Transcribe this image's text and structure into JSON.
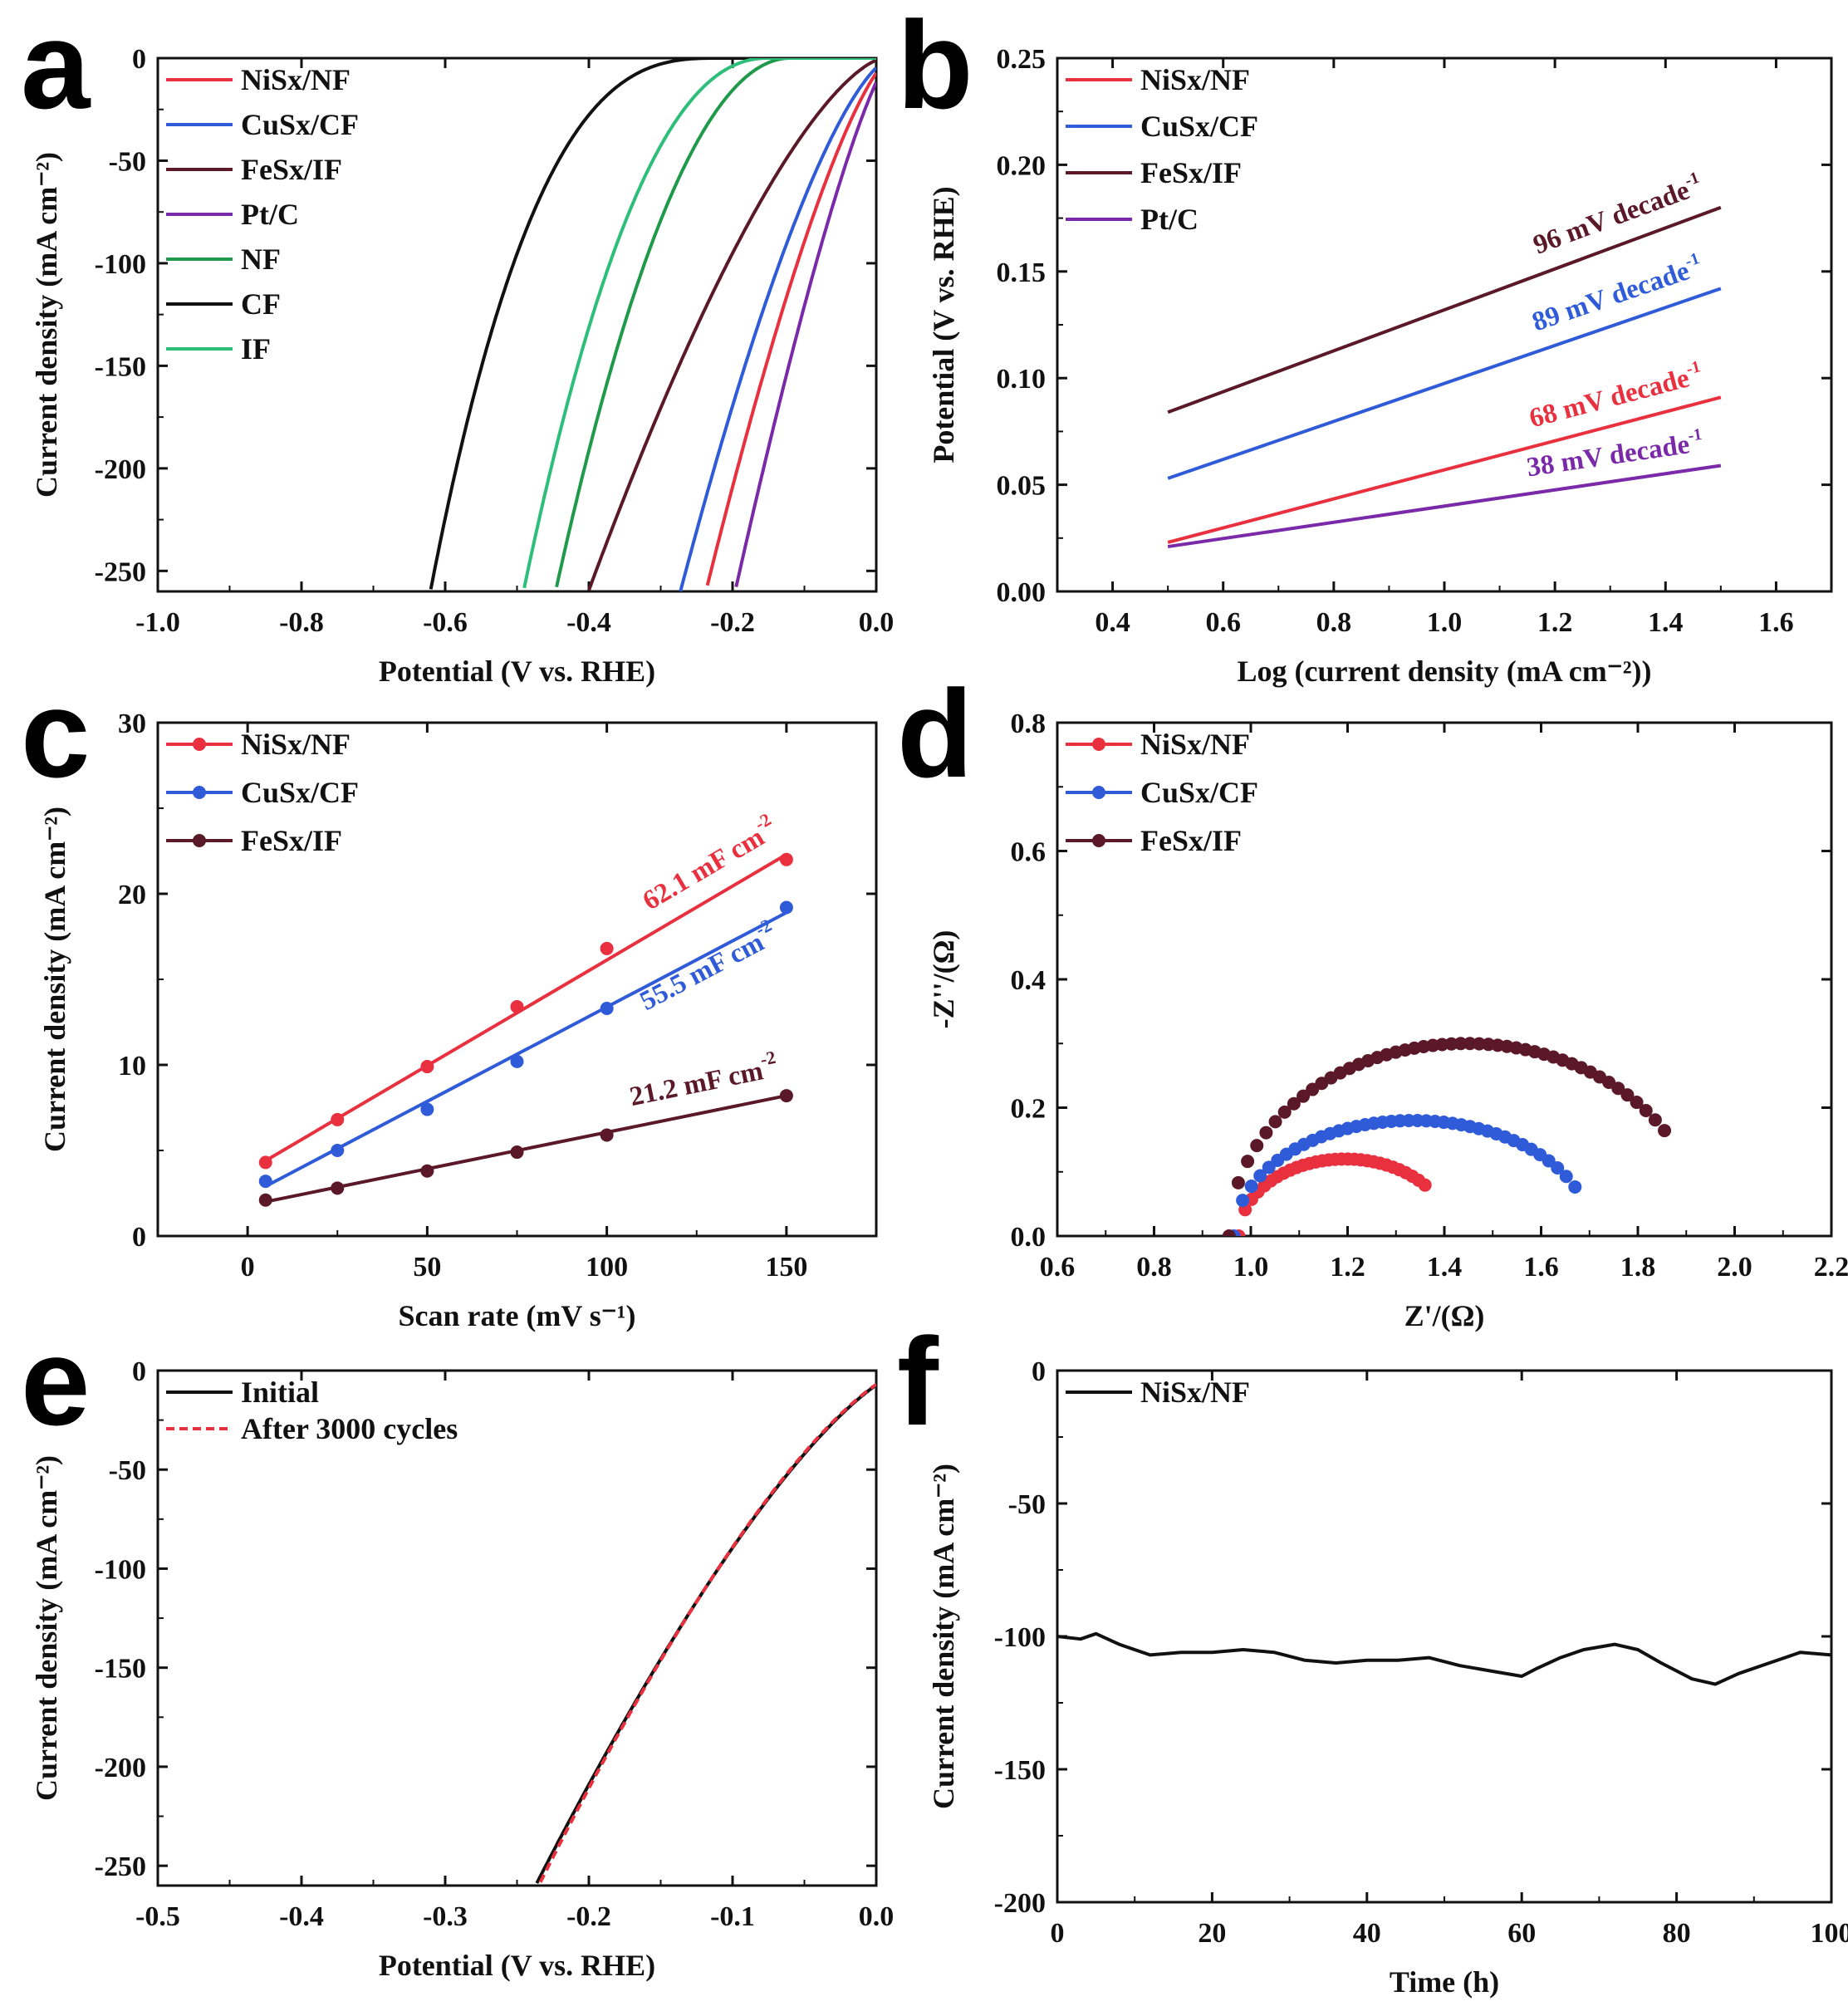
{
  "colors": {
    "red": "#e8303f",
    "blue": "#2f5bd9",
    "brown": "#5a1828",
    "purple": "#7a2aa8",
    "green": "#1f9a4a",
    "black": "#111111",
    "lightgreen": "#2dbf7a"
  },
  "chart_data": [
    {
      "id": "a",
      "panel_label": "a",
      "type": "line",
      "xlabel": "Potential (V vs. RHE)",
      "ylabel": "Current density (mA cm⁻²)",
      "xlim": [
        -1.0,
        0.0
      ],
      "ylim": [
        -260,
        0
      ],
      "xticks": [
        -1.0,
        -0.8,
        -0.6,
        -0.4,
        -0.2,
        0.0
      ],
      "xtick_labels": [
        "-1.0",
        "-0.8",
        "-0.6",
        "-0.4",
        "-0.2",
        "0.0"
      ],
      "yticks": [
        0,
        -50,
        -100,
        -150,
        -200,
        -250
      ],
      "ytick_labels": [
        "0",
        "-50",
        "-100",
        "-150",
        "-200",
        "-250"
      ],
      "legend": "top-left",
      "series": [
        {
          "name": "NiSx/NF",
          "color": "red",
          "onset": 0.02,
          "e250": -0.23,
          "sharp": 1.4
        },
        {
          "name": "CuSx/CF",
          "color": "blue",
          "onset": 0.02,
          "e250": -0.265,
          "sharp": 1.5
        },
        {
          "name": "FeSx/IF",
          "color": "brown",
          "onset": 0.01,
          "e250": -0.39,
          "sharp": 1.5
        },
        {
          "name": "Pt/C",
          "color": "purple",
          "onset": 0.02,
          "e250": -0.19,
          "sharp": 1.3
        },
        {
          "name": "NF",
          "color": "green",
          "onset": -0.12,
          "e250": -0.44,
          "sharp": 2.0
        },
        {
          "name": "CF",
          "color": "black",
          "onset": -0.22,
          "e250": -0.615,
          "sharp": 2.8
        },
        {
          "name": "IF",
          "color": "lightgreen",
          "onset": -0.15,
          "e250": -0.485,
          "sharp": 2.2
        }
      ]
    },
    {
      "id": "b",
      "panel_label": "b",
      "type": "line",
      "xlabel": "Log (current density (mA cm⁻²))",
      "ylabel": "Potential (V vs. RHE)",
      "xlim": [
        0.3,
        1.7
      ],
      "ylim": [
        0.0,
        0.25
      ],
      "xticks": [
        0.4,
        0.6,
        0.8,
        1.0,
        1.2,
        1.4,
        1.6
      ],
      "xtick_labels": [
        "0.4",
        "0.6",
        "0.8",
        "1.0",
        "1.2",
        "1.4",
        "1.6"
      ],
      "yticks": [
        0.0,
        0.05,
        0.1,
        0.15,
        0.2,
        0.25
      ],
      "ytick_labels": [
        "0.00",
        "0.05",
        "0.10",
        "0.15",
        "0.20",
        "0.25"
      ],
      "legend": "top-left",
      "series": [
        {
          "name": "NiSx/NF",
          "color": "red",
          "x": [
            0.5,
            1.5
          ],
          "y": [
            0.023,
            0.091
          ],
          "label": "68 mV decade",
          "label_sup": "-1"
        },
        {
          "name": "CuSx/CF",
          "color": "blue",
          "x": [
            0.5,
            1.5
          ],
          "y": [
            0.053,
            0.142
          ],
          "label": "89 mV decade",
          "label_sup": "-1"
        },
        {
          "name": "FeSx/IF",
          "color": "brown",
          "x": [
            0.5,
            1.5
          ],
          "y": [
            0.084,
            0.18
          ],
          "label": "96 mV decade",
          "label_sup": "-1"
        },
        {
          "name": "Pt/C",
          "color": "purple",
          "x": [
            0.5,
            1.5
          ],
          "y": [
            0.021,
            0.059
          ],
          "label": "38 mV decade",
          "label_sup": "-1"
        }
      ]
    },
    {
      "id": "c",
      "panel_label": "c",
      "type": "scatter",
      "xlabel": "Scan rate (mV s⁻¹)",
      "ylabel": "Current density (mA cm⁻²)",
      "xlim": [
        -25,
        175
      ],
      "ylim": [
        0,
        30
      ],
      "xticks": [
        0,
        50,
        100,
        150
      ],
      "xtick_labels": [
        "0",
        "50",
        "100",
        "150"
      ],
      "yticks": [
        0,
        10,
        20,
        30
      ],
      "ytick_labels": [
        "0",
        "10",
        "20",
        "30"
      ],
      "legend": "top-left",
      "series": [
        {
          "name": "NiSx/NF",
          "color": "red",
          "x": [
            5,
            25,
            50,
            75,
            100,
            150
          ],
          "y": [
            4.3,
            6.8,
            9.9,
            13.4,
            16.8,
            22.0
          ],
          "fit": [
            4.4,
            22.3
          ],
          "label": "62.1 mF cm",
          "label_sup": "-2"
        },
        {
          "name": "CuSx/CF",
          "color": "blue",
          "x": [
            5,
            25,
            50,
            75,
            100,
            150
          ],
          "y": [
            3.2,
            5.0,
            7.4,
            10.2,
            13.3,
            19.2
          ],
          "fit": [
            2.9,
            18.9
          ],
          "label": "55.5 mF cm",
          "label_sup": "-2"
        },
        {
          "name": "FeSx/IF",
          "color": "brown",
          "x": [
            5,
            25,
            50,
            75,
            100,
            150
          ],
          "y": [
            2.1,
            2.8,
            3.8,
            4.9,
            5.9,
            8.2
          ],
          "fit": [
            2.0,
            8.2
          ],
          "label": "21.2 mF cm",
          "label_sup": "-2"
        }
      ]
    },
    {
      "id": "d",
      "panel_label": "d",
      "type": "scatter",
      "xlabel": "Z'/(Ω)",
      "ylabel": "-Z''/(Ω)",
      "xlim": [
        0.6,
        2.2
      ],
      "ylim": [
        0.0,
        0.8
      ],
      "xticks": [
        0.6,
        0.8,
        1.0,
        1.2,
        1.4,
        1.6,
        1.8,
        2.0,
        2.2
      ],
      "xtick_labels": [
        "0.6",
        "0.8",
        "1.0",
        "1.2",
        "1.4",
        "1.6",
        "1.8",
        "2.0",
        "2.2"
      ],
      "yticks": [
        0.0,
        0.2,
        0.4,
        0.6,
        0.8
      ],
      "ytick_labels": [
        "0.0",
        "0.2",
        "0.4",
        "0.6",
        "0.8"
      ],
      "legend": "top-left",
      "series": [
        {
          "name": "NiSx/NF",
          "color": "red",
          "rs": 0.975,
          "diam": 0.44,
          "peak": 0.12,
          "zend": 1.36,
          "n": 30
        },
        {
          "name": "CuSx/CF",
          "color": "blue",
          "rs": 0.965,
          "diam": 0.74,
          "peak": 0.18,
          "zend": 1.67,
          "n": 40
        },
        {
          "name": "FeSx/IF",
          "color": "brown",
          "rs": 0.955,
          "diam": 0.98,
          "peak": 0.3,
          "zend": 1.855,
          "n": 48
        }
      ]
    },
    {
      "id": "e",
      "panel_label": "e",
      "type": "line",
      "xlabel": "Potential (V vs. RHE)",
      "ylabel": "Current density (mA cm⁻²)",
      "xlim": [
        -0.5,
        0.0
      ],
      "ylim": [
        -260,
        0
      ],
      "xticks": [
        -0.5,
        -0.4,
        -0.3,
        -0.2,
        -0.1,
        0.0
      ],
      "xtick_labels": [
        "-0.5",
        "-0.4",
        "-0.3",
        "-0.2",
        "-0.1",
        "0.0"
      ],
      "yticks": [
        0,
        -50,
        -100,
        -150,
        -200,
        -250
      ],
      "ytick_labels": [
        "0",
        "-50",
        "-100",
        "-150",
        "-200",
        "-250"
      ],
      "legend": "top-left",
      "series": [
        {
          "name": "Initial",
          "color": "black",
          "dash": false,
          "onset": 0.02,
          "e250": -0.23,
          "sharp": 1.4
        },
        {
          "name": "After 3000 cycles",
          "color": "red",
          "dash": true,
          "onset": 0.02,
          "e250": -0.228,
          "sharp": 1.42
        }
      ]
    },
    {
      "id": "f",
      "panel_label": "f",
      "type": "line",
      "xlabel": "Time (h)",
      "ylabel": "Current density (mA cm⁻²)",
      "xlim": [
        0,
        100
      ],
      "ylim": [
        -200,
        0
      ],
      "xticks": [
        0,
        20,
        40,
        60,
        80,
        100
      ],
      "xtick_labels": [
        "0",
        "20",
        "40",
        "60",
        "80",
        "100"
      ],
      "yticks": [
        0,
        -50,
        -100,
        -150,
        -200
      ],
      "ytick_labels": [
        "0",
        "-50",
        "-100",
        "-150",
        "-200"
      ],
      "legend": "top-left",
      "series": [
        {
          "name": "NiSx/NF",
          "color": "black",
          "x": [
            0,
            3,
            5,
            8,
            12,
            16,
            20,
            24,
            28,
            32,
            36,
            40,
            44,
            48,
            52,
            56,
            60,
            62,
            65,
            68,
            72,
            75,
            78,
            82,
            85,
            88,
            92,
            96,
            100
          ],
          "y": [
            -100,
            -101,
            -99,
            -103,
            -107,
            -106,
            -106,
            -105,
            -106,
            -109,
            -110,
            -109,
            -109,
            -108,
            -111,
            -113,
            -115,
            -112,
            -108,
            -105,
            -103,
            -105,
            -110,
            -116,
            -118,
            -114,
            -110,
            -106,
            -107
          ]
        }
      ]
    }
  ]
}
